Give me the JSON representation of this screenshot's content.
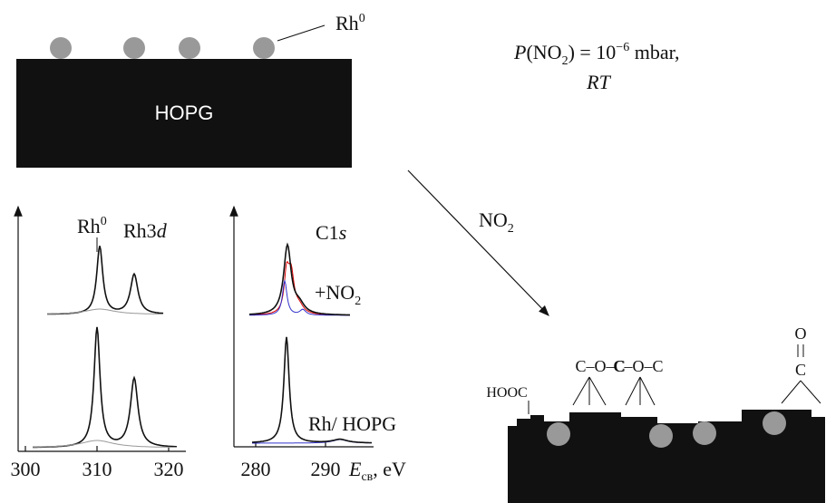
{
  "top_panel": {
    "particle_label": {
      "base": "Rh",
      "sup": "0"
    },
    "substrate": "HOPG"
  },
  "conditions": {
    "line1": {
      "p": "P",
      "open": "(NO",
      "sub": "2",
      "close": ") = 10",
      "sup": "−6",
      "unit": " mbar,"
    },
    "line2": "RT"
  },
  "arrow_label": {
    "base": "NO",
    "sub": "2"
  },
  "rh3d_panel": {
    "peak_label": {
      "base": "Rh",
      "sup": "0"
    },
    "title": {
      "base": "Rh3",
      "italic": "d"
    },
    "x_ticks": [
      300,
      310,
      320
    ]
  },
  "c1s_panel": {
    "title": {
      "base": "C1",
      "italic": "s"
    },
    "upper_label": {
      "base": "+NO",
      "sub": "2"
    },
    "lower_label": "Rh/ HOPG",
    "x_ticks": [
      280,
      290
    ],
    "x_axis_label": {
      "italic": "E",
      "sub": "св",
      "unit": ", eV"
    }
  },
  "bottom_panel": {
    "groups": [
      "HOOC",
      "C–O–C",
      "C–O–C"
    ],
    "carbonyl": {
      "top": "O",
      "bottom": "C"
    }
  }
}
